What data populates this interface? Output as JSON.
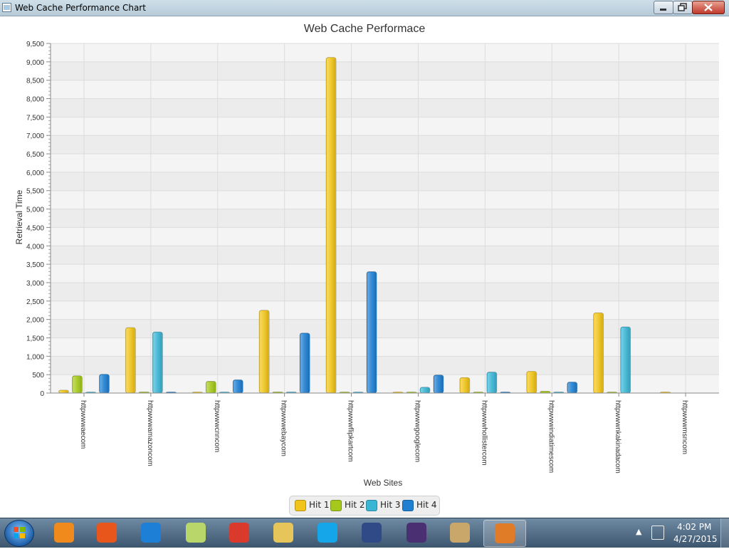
{
  "window": {
    "title": "Web Cache Performance Chart"
  },
  "chart_data": {
    "type": "bar",
    "title": "Web Cache Performace",
    "xlabel": "Web Sites",
    "ylabel": "Retrieval Time",
    "ylim": [
      0,
      9500
    ],
    "yticks": [
      0,
      500,
      1000,
      1500,
      2000,
      2500,
      3000,
      3500,
      4000,
      4500,
      5000,
      5500,
      6000,
      6500,
      7000,
      7500,
      8000,
      8500,
      9000,
      9500
    ],
    "ytick_labels": [
      "0",
      "500",
      "1,000",
      "1,500",
      "2,000",
      "2,500",
      "3,000",
      "3,500",
      "4,000",
      "4,500",
      "5,000",
      "5,500",
      "6,000",
      "6,500",
      "7,000",
      "7,500",
      "8,000",
      "8,500",
      "9,000",
      "9,500"
    ],
    "categories": [
      "httpwwwaecom",
      "httpwwwamazoncom",
      "httpwwwcnncom",
      "httpwwwebaycom",
      "httpwwwflipkartcom",
      "httpwwwgooglecom",
      "httpwwwhollistercom",
      "httpwwwindiatimescom",
      "httpwwwnkakinadacom",
      "httpwwwmsncom"
    ],
    "series": [
      {
        "name": "Hit 1",
        "color": "#f0c419",
        "values": [
          80,
          1780,
          10,
          2250,
          9120,
          10,
          420,
          590,
          2180,
          10
        ]
      },
      {
        "name": "Hit 2",
        "color": "#a4c81c",
        "values": [
          470,
          30,
          320,
          30,
          10,
          10,
          10,
          50,
          10,
          null
        ]
      },
      {
        "name": "Hit 3",
        "color": "#3bb5d4",
        "values": [
          10,
          1660,
          10,
          30,
          10,
          160,
          570,
          30,
          1800,
          null
        ]
      },
      {
        "name": "Hit 4",
        "color": "#1f7fd1",
        "values": [
          510,
          10,
          360,
          1630,
          3300,
          490,
          10,
          300,
          null,
          null
        ]
      }
    ],
    "grid": true,
    "legend_position": "bottom-center"
  },
  "taskbar": {
    "clock_time": "4:02 PM",
    "clock_date": "4/27/2015",
    "apps": [
      {
        "name": "media-player-icon",
        "color": "#f08a1c"
      },
      {
        "name": "firefox-icon",
        "color": "#e8561c"
      },
      {
        "name": "internet-explorer-icon",
        "color": "#1d7fd6"
      },
      {
        "name": "sticky-notes-icon",
        "color": "#b9d66b"
      },
      {
        "name": "chrome-icon",
        "color": "#d93a2b"
      },
      {
        "name": "file-explorer-icon",
        "color": "#e6c65a"
      },
      {
        "name": "skype-icon",
        "color": "#14a6e8"
      },
      {
        "name": "sql-console-icon",
        "color": "#2f4a86"
      },
      {
        "name": "java-ee-ide-icon",
        "color": "#4a2f73"
      },
      {
        "name": "paint-icon",
        "color": "#c9a76a"
      },
      {
        "name": "java-icon",
        "color": "#e07b28"
      }
    ]
  }
}
